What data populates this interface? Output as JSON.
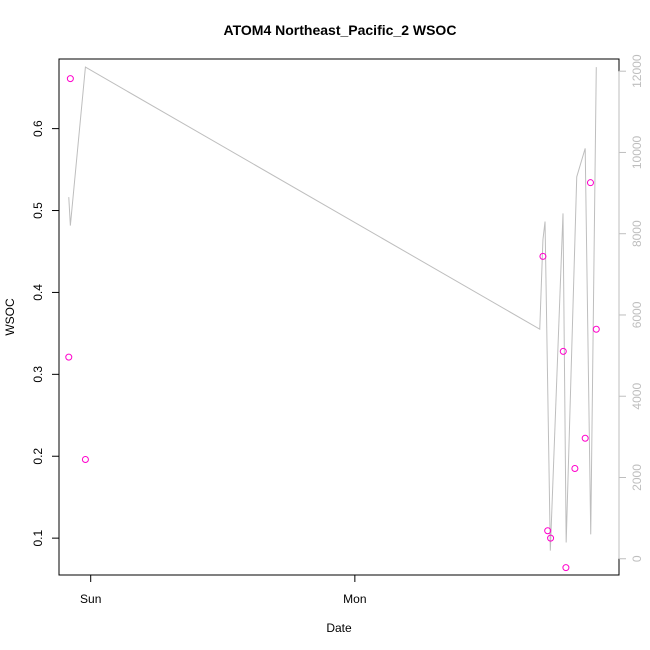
{
  "chart_data": {
    "type": "scatter",
    "title": "ATOM4 Northeast_Pacific_2 WSOC",
    "xlabel": "Date",
    "ylabel": "WSOC",
    "x_ticks": [
      "Sun",
      "Mon"
    ],
    "x_tick_positions_days": [
      0,
      1
    ],
    "xlim_days": [
      -0.12,
      2.0
    ],
    "ylim": [
      0.055,
      0.685
    ],
    "y_ticks": [
      "0.1",
      "0.2",
      "0.3",
      "0.4",
      "0.5",
      "0.6"
    ],
    "y2lim": [
      -400,
      12300
    ],
    "y2_ticks": [
      "0",
      "2000",
      "4000",
      "6000",
      "8000",
      "10000",
      "12000"
    ],
    "series": [
      {
        "type": "scatter",
        "color": "#ff00cc",
        "points": [
          {
            "x": -0.083,
            "y": 0.321
          },
          {
            "x": -0.077,
            "y": 0.661
          },
          {
            "x": -0.02,
            "y": 0.196
          },
          {
            "x": 1.712,
            "y": 0.444
          },
          {
            "x": 1.73,
            "y": 0.109
          },
          {
            "x": 1.741,
            "y": 0.1
          },
          {
            "x": 1.789,
            "y": 0.328
          },
          {
            "x": 1.799,
            "y": 0.064
          },
          {
            "x": 1.833,
            "y": 0.185
          },
          {
            "x": 1.872,
            "y": 0.222
          },
          {
            "x": 1.892,
            "y": 0.534
          },
          {
            "x": 1.914,
            "y": 0.355
          }
        ]
      },
      {
        "type": "line",
        "axis": "right",
        "color": "#bebebe",
        "points": [
          {
            "x": -0.083,
            "y": 8900
          },
          {
            "x": -0.077,
            "y": 8200
          },
          {
            "x": -0.02,
            "y": 12100
          },
          {
            "x": 1.7,
            "y": 5650
          },
          {
            "x": 1.712,
            "y": 7850
          },
          {
            "x": 1.72,
            "y": 8300
          },
          {
            "x": 1.74,
            "y": 200
          },
          {
            "x": 1.788,
            "y": 8500
          },
          {
            "x": 1.8,
            "y": 400
          },
          {
            "x": 1.84,
            "y": 9400
          },
          {
            "x": 1.872,
            "y": 10100
          },
          {
            "x": 1.893,
            "y": 600
          },
          {
            "x": 1.914,
            "y": 12100
          }
        ]
      }
    ]
  }
}
